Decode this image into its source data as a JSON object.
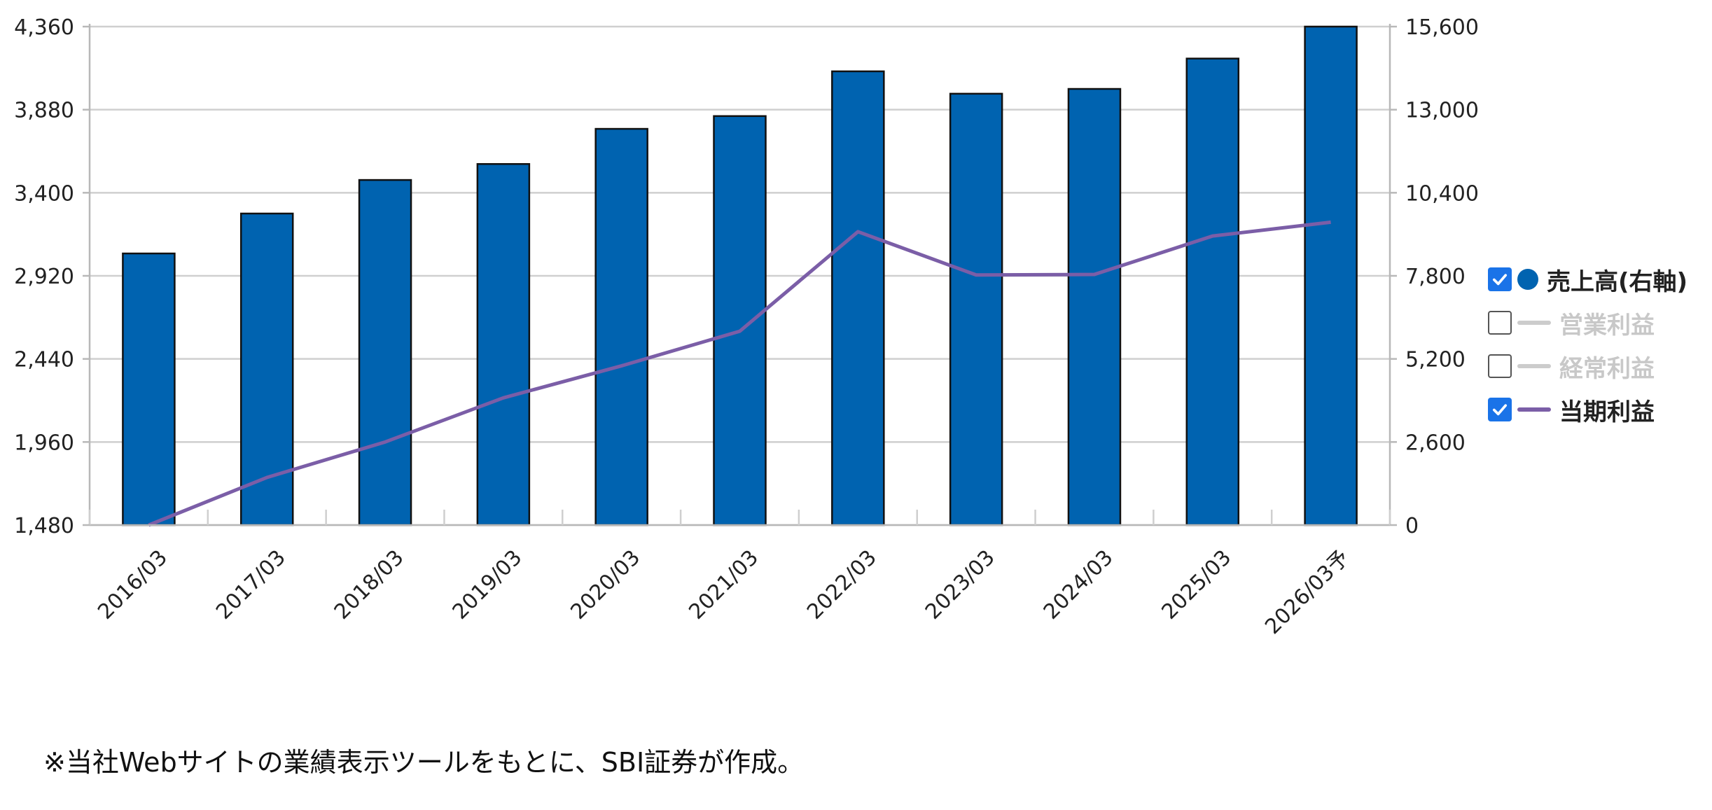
{
  "chart_data": {
    "type": "bar",
    "categories": [
      "2016/03",
      "2017/03",
      "2018/03",
      "2019/03",
      "2020/03",
      "2021/03",
      "2022/03",
      "2023/03",
      "2024/03",
      "2025/03",
      "2026/03予"
    ],
    "series": [
      {
        "name": "売上高(右軸)",
        "type": "bar",
        "axis": "right",
        "color": "#0063b0",
        "values": [
          8500,
          9750,
          10800,
          11300,
          12400,
          12800,
          14200,
          13500,
          13650,
          14600,
          15600
        ]
      },
      {
        "name": "当期利益",
        "type": "line",
        "axis": "left",
        "color": "#7b5ea7",
        "values": [
          1480,
          1755,
          1960,
          2215,
          2400,
          2600,
          3175,
          2925,
          2928,
          3150,
          3230
        ]
      }
    ],
    "left_axis": {
      "ylim": [
        1480,
        4360
      ],
      "ticks": [
        "1,480",
        "1,960",
        "2,440",
        "2,920",
        "3,400",
        "3,880",
        "4,360"
      ]
    },
    "right_axis": {
      "ylim": [
        0,
        15600
      ],
      "ticks": [
        "0",
        "2,600",
        "5,200",
        "7,800",
        "10,400",
        "13,000",
        "15,600"
      ]
    },
    "grid": true,
    "legend_placement": "right"
  },
  "legend": [
    {
      "label": "売上高(右軸)",
      "checked": true,
      "marker": "dot",
      "color": "#0063b0",
      "text_color": "#222222"
    },
    {
      "label": "営業利益",
      "checked": false,
      "marker": "line",
      "color": "#cccccc",
      "text_color": "#c8c8c8"
    },
    {
      "label": "経常利益",
      "checked": false,
      "marker": "line",
      "color": "#cccccc",
      "text_color": "#c8c8c8"
    },
    {
      "label": "当期利益",
      "checked": true,
      "marker": "line",
      "color": "#7b5ea7",
      "text_color": "#222222"
    }
  ],
  "footnote": "※当社Webサイトの業績表示ツールをもとに、SBI証券が作成。"
}
